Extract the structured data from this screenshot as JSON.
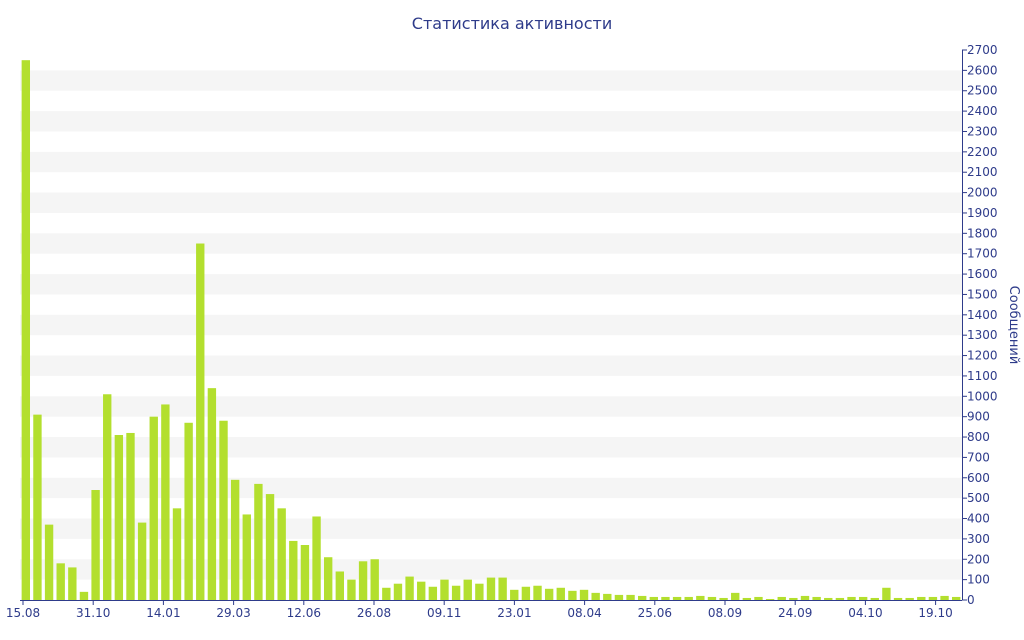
{
  "chart_data": {
    "type": "bar",
    "title": "Статистика активности",
    "xlabel": "",
    "ylabel": "Сообщений",
    "ylim": [
      0,
      2700
    ],
    "ytick_step": 100,
    "grid": "horizontal alternating bands",
    "y_axis_side": "right",
    "x_tick_labels": [
      "15.08",
      "31.10",
      "14.01",
      "29.03",
      "12.06",
      "26.08",
      "09.11",
      "23.01",
      "08.04",
      "25.06",
      "08.09",
      "24.09",
      "04.10",
      "19.10"
    ],
    "values": [
      2650,
      910,
      370,
      180,
      160,
      40,
      540,
      1010,
      810,
      820,
      380,
      900,
      960,
      450,
      870,
      1750,
      1040,
      880,
      590,
      420,
      570,
      520,
      450,
      290,
      270,
      410,
      210,
      140,
      100,
      190,
      200,
      60,
      80,
      115,
      90,
      65,
      100,
      70,
      100,
      80,
      110,
      110,
      50,
      65,
      70,
      55,
      60,
      45,
      50,
      35,
      30,
      25,
      25,
      20,
      15,
      15,
      15,
      15,
      20,
      15,
      10,
      35,
      10,
      15,
      5,
      15,
      10,
      20,
      15,
      10,
      10,
      15,
      15,
      10,
      60,
      10,
      10,
      15,
      15,
      20,
      15
    ],
    "colors": {
      "bar": "#b3df2e",
      "band": "#f5f5f5",
      "axis": "#2e3b8a",
      "text": "#2e3b8a"
    }
  }
}
